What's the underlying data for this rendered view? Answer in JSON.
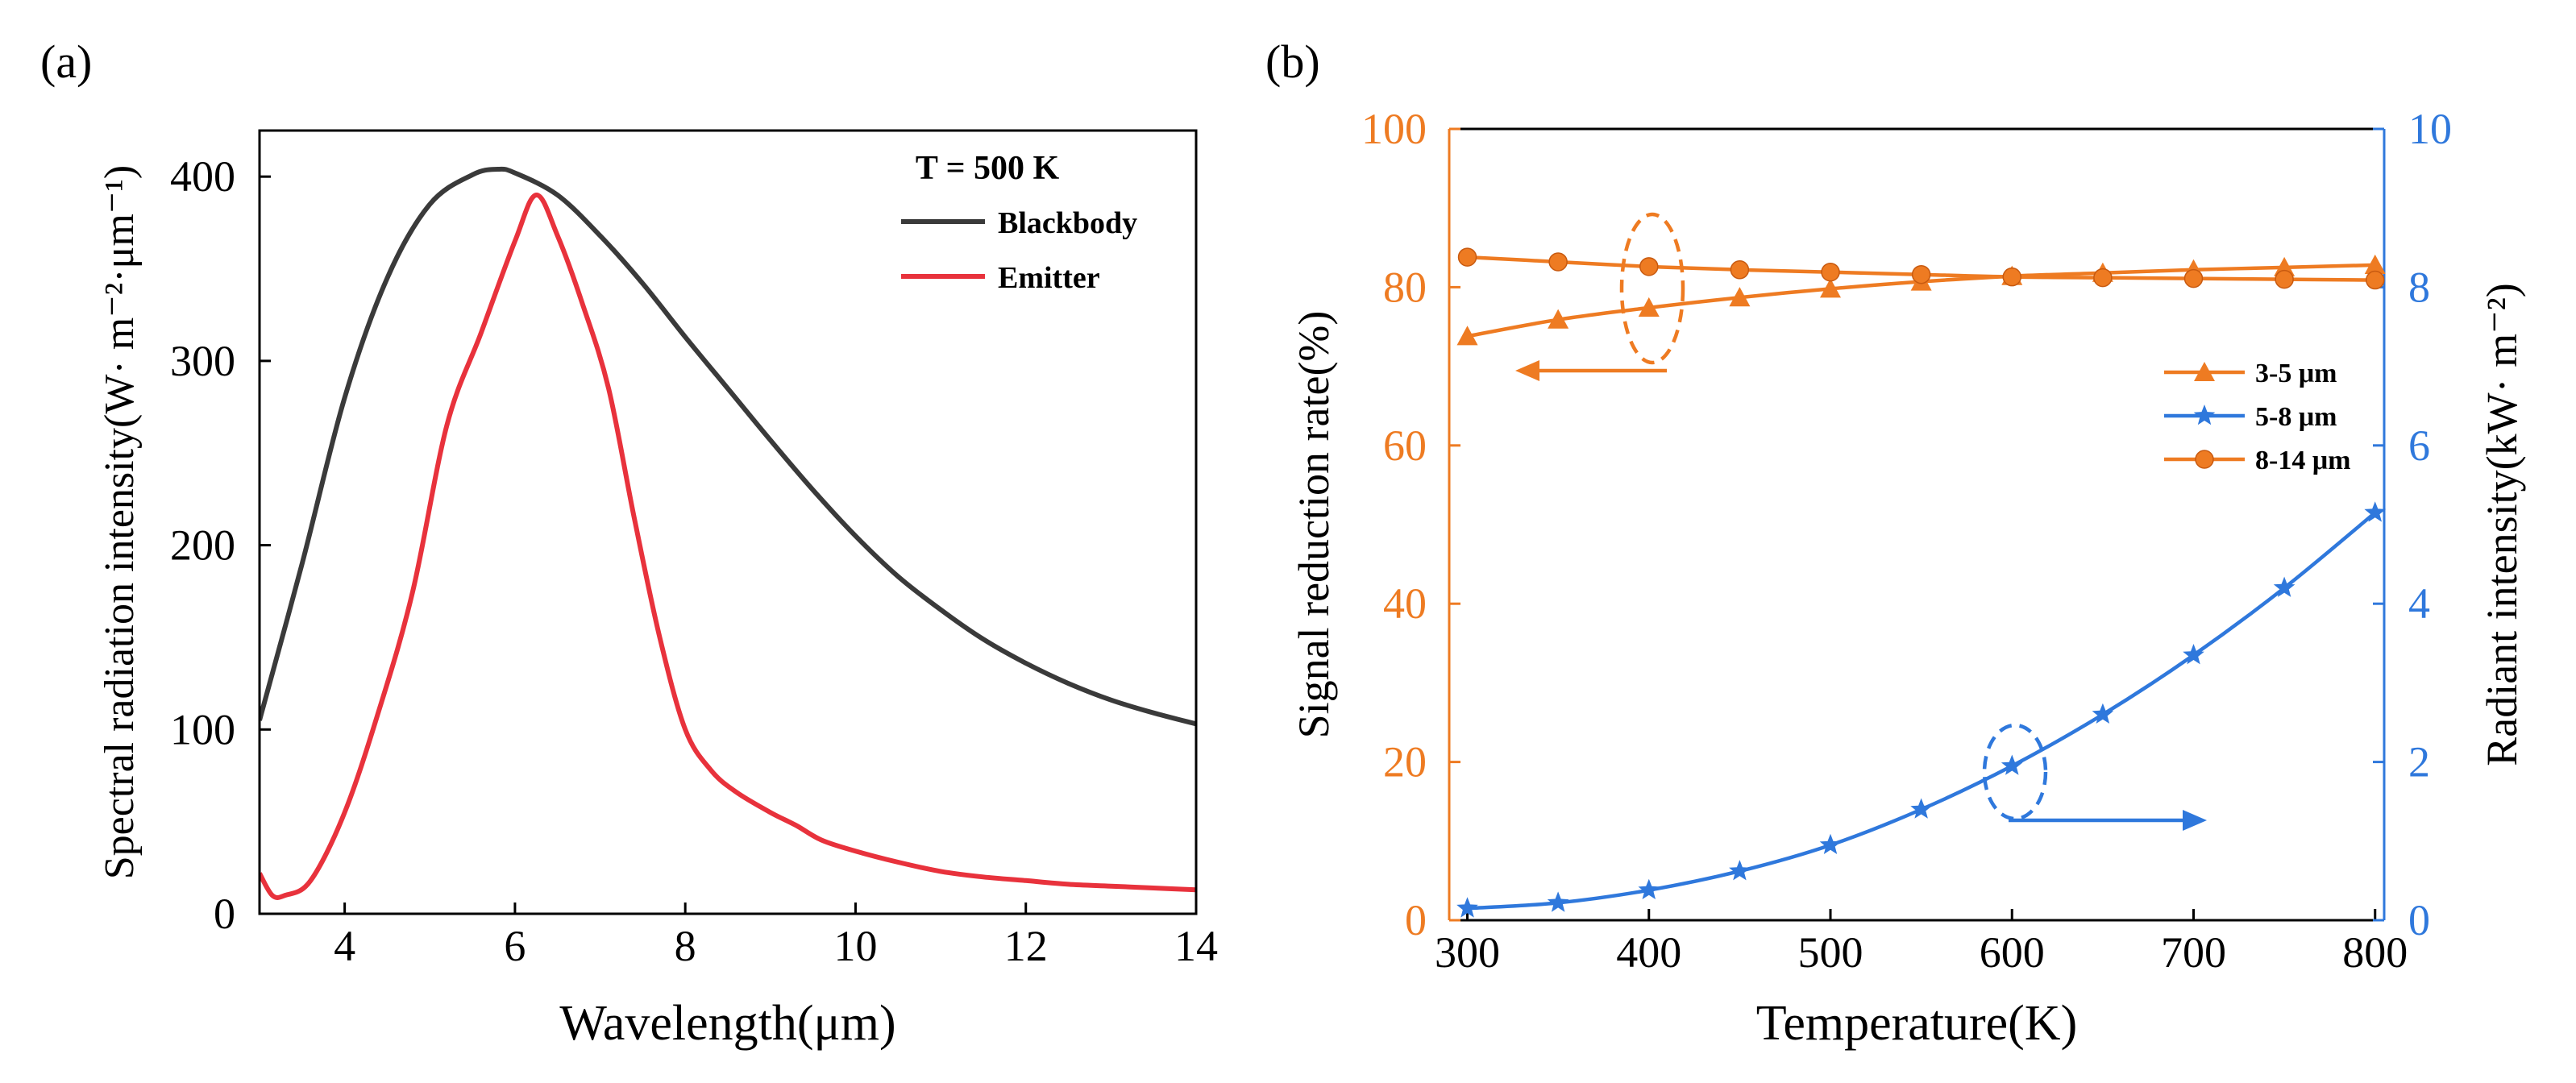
{
  "chart_data": [
    {
      "panel_label": "(a)",
      "type": "line",
      "title": "",
      "xlabel": "Wavelength(μm)",
      "ylabel": "Spectral radiation intensity(W· m⁻²·μm⁻¹)",
      "xlim": [
        3,
        14
      ],
      "ylim": [
        0,
        425
      ],
      "xticks": [
        4,
        6,
        8,
        10,
        12,
        14
      ],
      "yticks": [
        0,
        100,
        200,
        300,
        400
      ],
      "legend_title": "T = 500 K",
      "series": [
        {
          "name": "Blackbody",
          "color": "#3a3a3a",
          "x": [
            3.0,
            3.5,
            4.0,
            4.5,
            5.0,
            5.5,
            5.8,
            6.0,
            6.5,
            7.0,
            7.5,
            8.0,
            8.5,
            9.0,
            9.5,
            10.0,
            10.5,
            11.0,
            11.5,
            12.0,
            12.5,
            13.0,
            13.5,
            14.0
          ],
          "y": [
            105,
            190,
            280,
            345,
            385,
            401,
            404,
            402,
            390,
            368,
            342,
            313,
            285,
            257,
            230,
            205,
            183,
            165,
            149,
            136,
            125,
            116,
            109,
            103
          ]
        },
        {
          "name": "Emitter",
          "color": "#e8323c",
          "x": [
            3.0,
            3.15,
            3.3,
            3.6,
            4.0,
            4.4,
            4.8,
            5.2,
            5.6,
            6.0,
            6.25,
            6.5,
            6.8,
            7.1,
            7.4,
            7.7,
            8.0,
            8.3,
            8.6,
            9.0,
            9.3,
            9.6,
            10.0,
            10.5,
            11.0,
            11.5,
            12.0,
            12.5,
            13.0,
            13.5,
            14.0
          ],
          "y": [
            22,
            10,
            10,
            18,
            55,
            110,
            175,
            265,
            315,
            365,
            390,
            368,
            330,
            285,
            215,
            150,
            100,
            78,
            66,
            55,
            48,
            40,
            34,
            28,
            23,
            20,
            18,
            16,
            15,
            14,
            13
          ]
        }
      ]
    },
    {
      "panel_label": "(b)",
      "type": "line",
      "title": "",
      "xlabel": "Temperature(K)",
      "ylabel": "Signal reduction rate(%)",
      "y2label": "Radiant intensity(kW· m⁻²)",
      "xlim": [
        290,
        805
      ],
      "ylim": [
        0,
        100
      ],
      "y2lim": [
        0,
        10
      ],
      "xticks": [
        300,
        400,
        500,
        600,
        700,
        800
      ],
      "yticks": [
        0,
        20,
        40,
        60,
        80,
        100
      ],
      "y2ticks": [
        0,
        2,
        4,
        6,
        8,
        10
      ],
      "left_axis_color": "#ee7b22",
      "right_axis_color": "#2f78dc",
      "series": [
        {
          "name": "3-5 μm",
          "axis": "left",
          "marker": "triangle",
          "color": "#ee7b22",
          "x": [
            300,
            350,
            400,
            450,
            500,
            550,
            600,
            650,
            700,
            750,
            800
          ],
          "y": [
            73.8,
            75.9,
            77.4,
            78.7,
            79.8,
            80.7,
            81.4,
            81.8,
            82.2,
            82.5,
            82.8
          ]
        },
        {
          "name": "5-8 μm",
          "axis": "right",
          "marker": "star",
          "color": "#2f78dc",
          "x": [
            300,
            350,
            400,
            450,
            500,
            550,
            600,
            650,
            700,
            750,
            800
          ],
          "y": [
            0.15,
            0.22,
            0.38,
            0.62,
            0.95,
            1.4,
            1.95,
            2.6,
            3.35,
            4.2,
            5.15
          ]
        },
        {
          "name": "8-14 μm",
          "axis": "left",
          "marker": "circle",
          "color": "#ee7b22",
          "x": [
            300,
            350,
            400,
            450,
            500,
            550,
            600,
            650,
            700,
            750,
            800
          ],
          "y": [
            83.8,
            83.2,
            82.6,
            82.2,
            81.9,
            81.6,
            81.3,
            81.2,
            81.1,
            81.0,
            80.9
          ]
        }
      ]
    }
  ]
}
